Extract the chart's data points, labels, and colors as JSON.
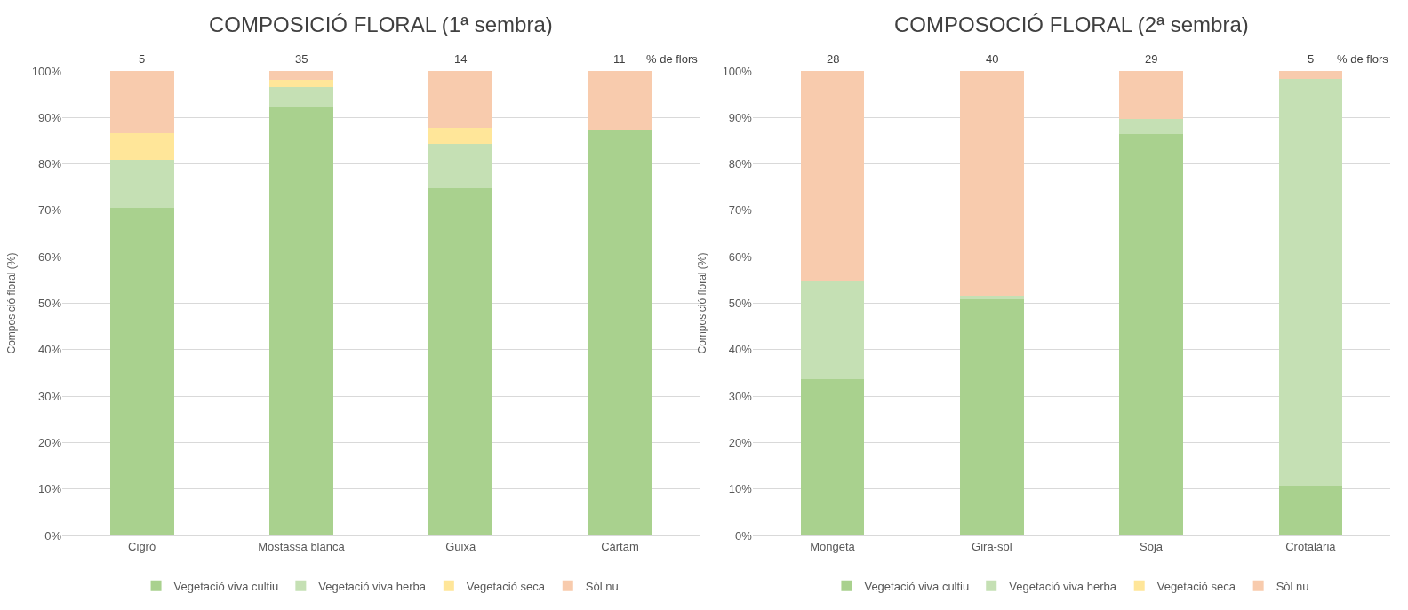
{
  "chart_data": [
    {
      "type": "bar",
      "title": "COMPOSICIÓ FLORAL (1ª sembra)",
      "ylabel": "Composició floral (%)",
      "categories": [
        "Cigró",
        "Mostassa blanca",
        "Guixa",
        "Càrtam"
      ],
      "stacked": true,
      "series": [
        {
          "name": "Vegetació viva cultiu",
          "color": "#a9d18e",
          "values": [
            70.5,
            92.1,
            74.7,
            87.4
          ]
        },
        {
          "name": "Vegetació viva herba",
          "color": "#c5e0b4",
          "values": [
            10.3,
            4.4,
            9.7,
            0
          ]
        },
        {
          "name": "Vegetació seca",
          "color": "#ffe699",
          "values": [
            5.8,
            1.6,
            3.4,
            0
          ]
        },
        {
          "name": "Sòl nu",
          "color": "#f8cbad",
          "values": [
            13.4,
            1.9,
            12.2,
            12.6
          ]
        }
      ],
      "ylim": [
        0,
        100
      ],
      "yticks": [
        {
          "value": 0,
          "label": "0%"
        },
        {
          "value": 10,
          "label": "10%"
        },
        {
          "value": 20,
          "label": "20%"
        },
        {
          "value": 30,
          "label": "30%"
        },
        {
          "value": 40,
          "label": "40%"
        },
        {
          "value": 50,
          "label": "50%"
        },
        {
          "value": 60,
          "label": "60%"
        },
        {
          "value": 70,
          "label": "70%"
        },
        {
          "value": 80,
          "label": "80%"
        },
        {
          "value": 90,
          "label": "90%"
        },
        {
          "value": 100,
          "label": "100%"
        }
      ],
      "grid": "y",
      "legend": "bottom",
      "annotations": [
        {
          "text": "5",
          "x": "Cigró",
          "y": 100
        },
        {
          "text": "35",
          "x": "Mostassa blanca",
          "y": 100
        },
        {
          "text": "14",
          "x": "Guixa",
          "y": 100
        },
        {
          "text": "11",
          "x": "Càrtam",
          "y": 100
        },
        "% de flors"
      ]
    },
    {
      "type": "bar",
      "title": "COMPOSOCIÓ FLORAL (2ª sembra)",
      "ylabel": "Composició floral (%)",
      "categories": [
        "Mongeta",
        "Gira-sol",
        "Soja",
        "Crotalària"
      ],
      "stacked": true,
      "series": [
        {
          "name": "Vegetació viva cultiu",
          "color": "#a9d18e",
          "values": [
            33.6,
            50.8,
            86.4,
            10.7
          ]
        },
        {
          "name": "Vegetació viva herba",
          "color": "#c5e0b4",
          "values": [
            21.3,
            0.9,
            3.2,
            87.6
          ]
        },
        {
          "name": "Vegetació seca",
          "color": "#ffe699",
          "values": [
            0,
            0,
            0,
            0
          ]
        },
        {
          "name": "Sòl nu",
          "color": "#f8cbad",
          "values": [
            45.1,
            48.3,
            10.4,
            1.7
          ]
        }
      ],
      "ylim": [
        0,
        100
      ],
      "yticks": [
        {
          "value": 0,
          "label": "0%"
        },
        {
          "value": 10,
          "label": "10%"
        },
        {
          "value": 20,
          "label": "20%"
        },
        {
          "value": 30,
          "label": "30%"
        },
        {
          "value": 40,
          "label": "40%"
        },
        {
          "value": 50,
          "label": "50%"
        },
        {
          "value": 60,
          "label": "60%"
        },
        {
          "value": 70,
          "label": "70%"
        },
        {
          "value": 80,
          "label": "80%"
        },
        {
          "value": 90,
          "label": "90%"
        },
        {
          "value": 100,
          "label": "100%"
        }
      ],
      "grid": "y",
      "legend": "bottom",
      "annotations": [
        {
          "text": "28",
          "x": "Mongeta",
          "y": 100
        },
        {
          "text": "40",
          "x": "Gira-sol",
          "y": 100
        },
        {
          "text": "29",
          "x": "Soja",
          "y": 100
        },
        {
          "text": "5",
          "x": "Crotalària",
          "y": 100
        },
        "% de flors"
      ]
    }
  ]
}
